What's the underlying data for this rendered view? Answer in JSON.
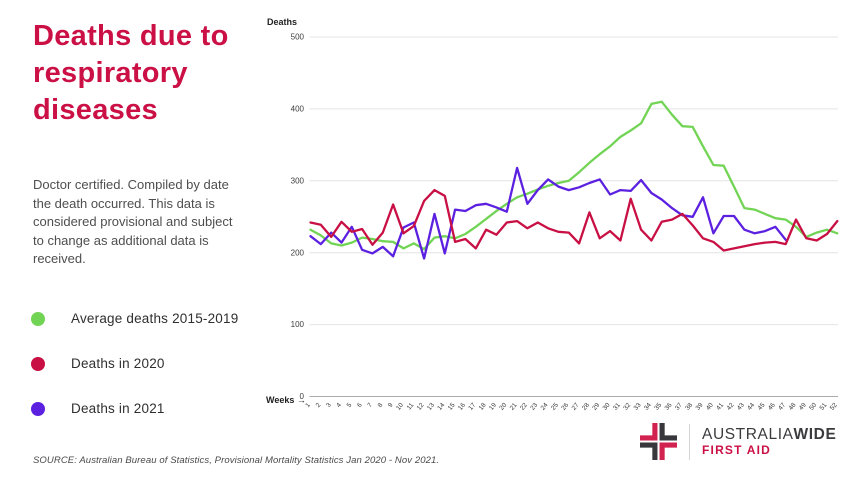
{
  "header": {
    "title": "Deaths due to respiratory diseases"
  },
  "description": "Doctor certified. Compiled by date the death occurred. This data is considered provisional and subject to change as additional data is received.",
  "legend": [
    {
      "label": "Average deaths 2015-2019",
      "color": "#72d455"
    },
    {
      "label": "Deaths in 2020",
      "color": "#c81044"
    },
    {
      "label": "Deaths in 2021",
      "color": "#5c21e0"
    }
  ],
  "source": "SOURCE: Australian Bureau of Statistics, Provisional Mortality Statistics Jan 2020 - Nov 2021.",
  "logo": {
    "brand_main": "AUSTRALIA",
    "brand_bold": "WIDE",
    "brand_sub": "FIRST AID",
    "cross_crimson": "#d2224f",
    "cross_dark": "#38383c"
  },
  "chart_data": {
    "type": "line",
    "title": "",
    "ylabel": "Deaths",
    "xlabel": "Weeks",
    "xlabel_arrow": "→",
    "ylim": [
      0,
      500
    ],
    "yticks": [
      0,
      100,
      200,
      300,
      400,
      500
    ],
    "grid": true,
    "legend_position": "left-panel",
    "x": [
      1,
      2,
      3,
      4,
      5,
      6,
      7,
      8,
      9,
      10,
      11,
      12,
      13,
      14,
      15,
      16,
      17,
      18,
      19,
      20,
      21,
      22,
      23,
      24,
      25,
      26,
      27,
      28,
      29,
      30,
      31,
      32,
      33,
      34,
      35,
      36,
      37,
      38,
      39,
      40,
      41,
      42,
      43,
      44,
      45,
      46,
      47,
      48,
      49,
      50,
      51,
      52
    ],
    "series": [
      {
        "name": "Average deaths 2015-2019",
        "color": "#72d455",
        "values": [
          232,
          224,
          213,
          210,
          214,
          221,
          219,
          216,
          215,
          206,
          213,
          205,
          221,
          223,
          220,
          226,
          236,
          247,
          258,
          268,
          277,
          282,
          288,
          293,
          297,
          300,
          312,
          325,
          337,
          348,
          361,
          370,
          380,
          407,
          410,
          392,
          376,
          375,
          348,
          322,
          321,
          292,
          262,
          260,
          254,
          248,
          246,
          236,
          222,
          228,
          232,
          227
        ]
      },
      {
        "name": "Deaths in 2021",
        "color": "#5c21e0",
        "values": [
          223,
          212,
          228,
          214,
          236,
          204,
          199,
          208,
          195,
          235,
          242,
          192,
          254,
          199,
          260,
          258,
          266,
          268,
          263,
          257,
          318,
          268,
          287,
          302,
          292,
          287,
          291,
          297,
          302,
          281,
          287,
          286,
          301,
          283,
          274,
          262,
          252,
          250,
          277,
          227,
          251,
          251,
          232,
          227,
          230,
          236,
          218
        ]
      },
      {
        "name": "Deaths in 2020",
        "color": "#c81044",
        "values": [
          242,
          239,
          222,
          243,
          229,
          233,
          211,
          228,
          267,
          227,
          237,
          272,
          287,
          279,
          215,
          219,
          206,
          232,
          225,
          242,
          244,
          234,
          242,
          234,
          229,
          228,
          213,
          256,
          220,
          230,
          217,
          275,
          232,
          217,
          243,
          246,
          254,
          238,
          220,
          215,
          203,
          206,
          209,
          212,
          214,
          215,
          212,
          246,
          220,
          217,
          226,
          244
        ]
      }
    ]
  }
}
